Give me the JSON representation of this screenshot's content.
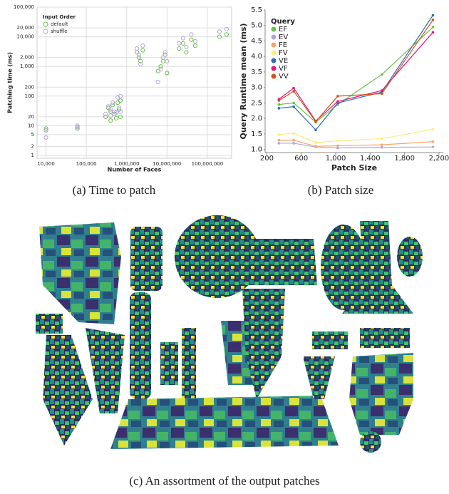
{
  "chart_data": [
    {
      "type": "scatter",
      "caption": "(a) Time to patch",
      "x_label": "Number of Faces",
      "y_label": "Patching time (ms)",
      "log_x": true,
      "log_y": true,
      "grid": true,
      "legend": "top-left",
      "legend_title": "Input Order",
      "xlim": [
        6000,
        400000000
      ],
      "ylim": [
        0.8,
        100000
      ],
      "xticks": [
        {
          "value": 10000,
          "label": "10,000"
        },
        {
          "value": 100000,
          "label": "100,000"
        },
        {
          "value": 1000000,
          "label": "1,000,000"
        },
        {
          "value": 10000000,
          "label": "10,000,000"
        },
        {
          "value": 100000000,
          "label": "100,000,000"
        }
      ],
      "yticks": [
        1,
        2,
        5,
        10,
        20,
        100,
        200,
        {
          "value": 1000,
          "label": "1,000"
        },
        {
          "value": 2000,
          "label": "2,000"
        },
        {
          "value": 10000,
          "label": "10,000"
        },
        {
          "value": 20000,
          "label": "20,000"
        },
        {
          "value": 100000,
          "label": "100,000"
        }
      ],
      "x": [
        10000,
        10000,
        60000,
        60000,
        300000,
        350000,
        400000,
        400000,
        450000,
        500000,
        550000,
        600000,
        650000,
        700000,
        700000,
        1800000,
        2000000,
        2200000,
        2500000,
        6000000,
        7000000,
        8000000,
        9000000,
        10000000,
        20000000,
        25000000,
        30000000,
        40000000,
        50000000,
        200000000,
        300000000
      ],
      "series": [
        {
          "name": "default",
          "color": "#6abf4b",
          "values": [
            7,
            8,
            8,
            9,
            20,
            40,
            30,
            15,
            50,
            25,
            18,
            60,
            35,
            20,
            70,
            3000,
            2000,
            1500,
            3500,
            700,
            1000,
            1500,
            2500,
            600,
            4000,
            6000,
            3000,
            8000,
            5000,
            10000,
            12000
          ]
        },
        {
          "name": "shuffle",
          "color": "#b9a3dc",
          "values": [
            4,
            7,
            9,
            10,
            25,
            45,
            35,
            22,
            60,
            30,
            28,
            90,
            40,
            30,
            100,
            4000,
            2500,
            1200,
            5000,
            300,
            800,
            2000,
            3000,
            1500,
            6000,
            9000,
            4500,
            12000,
            7000,
            15000,
            18000
          ]
        }
      ]
    },
    {
      "type": "line",
      "caption": "(b) Patch size",
      "x_label": "Patch Size",
      "y_label": "Query Runtime mean (ms)",
      "grid": false,
      "legend": "top-left",
      "legend_title": "Query",
      "xlim": [
        180,
        2250
      ],
      "ylim": [
        0.9,
        5.5
      ],
      "xticks": [
        200,
        600,
        {
          "value": 1000,
          "label": "1,000"
        },
        {
          "value": 1400,
          "label": "1,400"
        },
        {
          "value": 1800,
          "label": "1,800"
        },
        {
          "value": 2200,
          "label": "2,200"
        }
      ],
      "yticks": [
        {
          "value": 1,
          "label": "1.0"
        },
        1.5,
        {
          "value": 2,
          "label": "2.0"
        },
        2.5,
        {
          "value": 3,
          "label": "3.0"
        },
        3.5,
        {
          "value": 4,
          "label": "4.0"
        },
        4.5,
        {
          "value": 5,
          "label": "5.0"
        },
        5.5
      ],
      "x": [
        340,
        512,
        768,
        1024,
        1536,
        2130
      ],
      "series": [
        {
          "name": "EF",
          "color": "#6abf4b",
          "values": [
            2.45,
            2.5,
            1.88,
            2.45,
            3.42,
            4.95
          ]
        },
        {
          "name": "EV",
          "color": "#b9a3dc",
          "values": [
            1.2,
            1.2,
            1.08,
            1.05,
            1.07,
            1.08
          ]
        },
        {
          "name": "FE",
          "color": "#f5a56b",
          "values": [
            1.3,
            1.3,
            1.1,
            1.12,
            1.15,
            1.25
          ]
        },
        {
          "name": "FV",
          "color": "#f7f07a",
          "values": [
            1.48,
            1.52,
            1.22,
            1.28,
            1.35,
            1.65
          ]
        },
        {
          "name": "VE",
          "color": "#2f6db5",
          "values": [
            2.33,
            2.38,
            1.63,
            2.5,
            2.85,
            5.33
          ]
        },
        {
          "name": "VF",
          "color": "#e0197d",
          "values": [
            2.62,
            2.98,
            1.92,
            2.55,
            2.9,
            4.78
          ]
        },
        {
          "name": "VV",
          "color": "#d4511e",
          "values": [
            2.58,
            2.88,
            1.9,
            2.72,
            2.8,
            5.18
          ]
        }
      ]
    }
  ],
  "figure_c": {
    "caption": "(c) An assortment of the output patches"
  }
}
